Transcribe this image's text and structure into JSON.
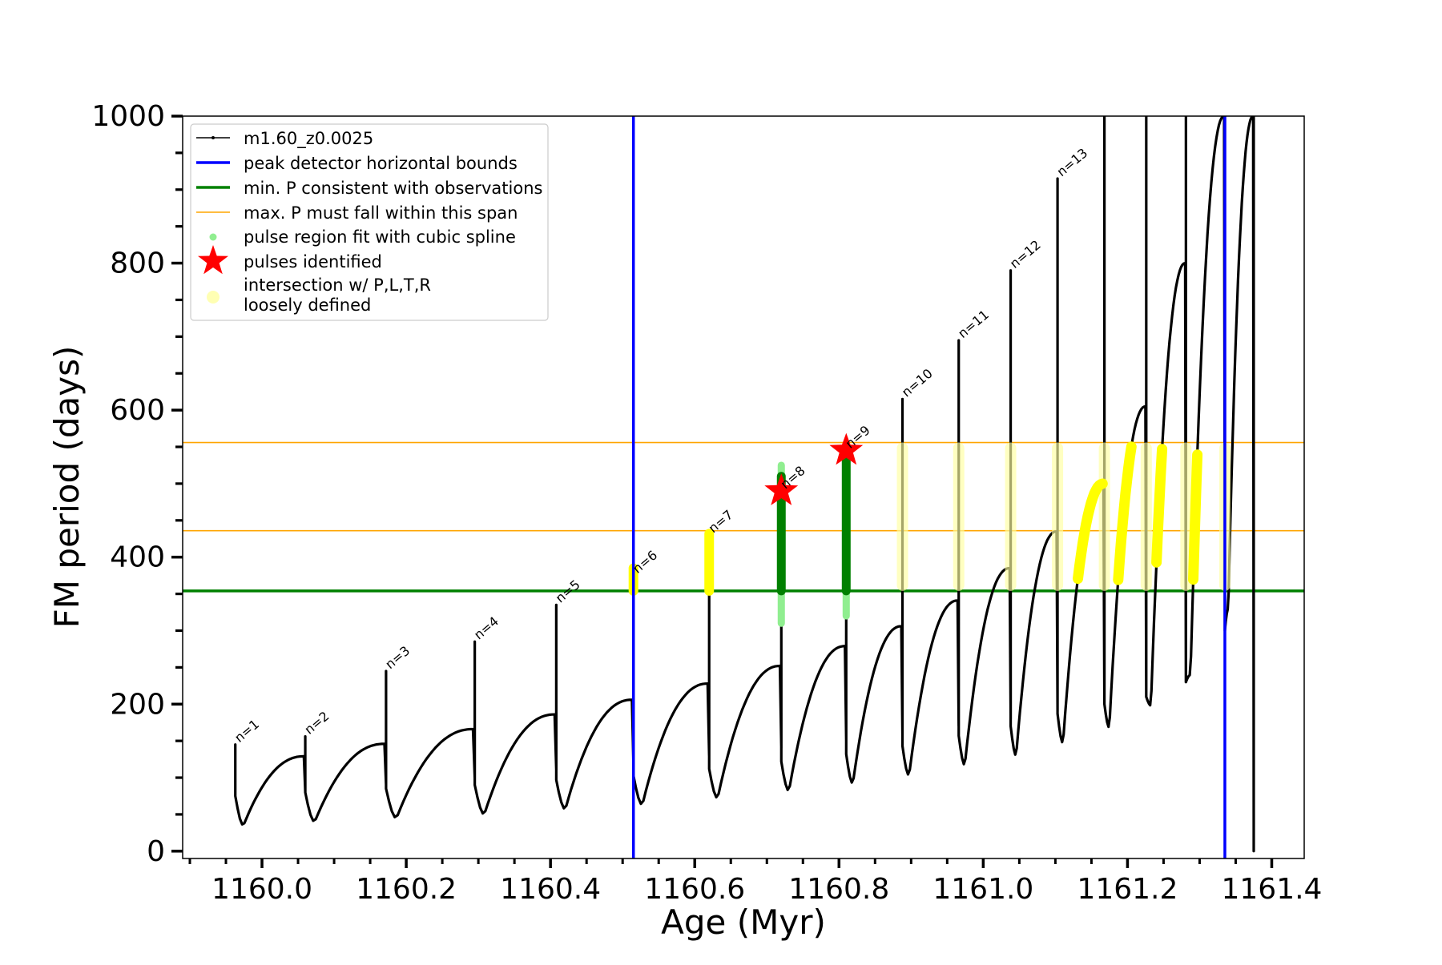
{
  "chart_data": {
    "type": "scatter",
    "xlabel": "Age (Myr)",
    "ylabel": "FM period (days)",
    "xlim": [
      1159.89,
      1161.445
    ],
    "ylim": [
      -10,
      1000
    ],
    "x_ticks": [
      "1160.0",
      "1160.2",
      "1160.4",
      "1160.6",
      "1160.8",
      "1161.0",
      "1161.2",
      "1161.4"
    ],
    "x_tick_values": [
      1160.0,
      1160.2,
      1160.4,
      1160.6,
      1160.8,
      1161.0,
      1161.2,
      1161.4
    ],
    "y_ticks": [
      "0",
      "200",
      "400",
      "600",
      "800",
      "1000"
    ],
    "y_tick_values": [
      0,
      200,
      400,
      600,
      800,
      1000
    ],
    "legend": {
      "placement": "upper-left",
      "entries": [
        "m1.60_z0.0025",
        "peak detector horizontal bounds",
        "min. P consistent with observations",
        "max. P must fall within this span",
        "pulse region fit with cubic spline",
        "pulses identified",
        "intersection w/ P,L,T,R",
        "loosely defined"
      ]
    },
    "colors": {
      "track": "#000000",
      "bounds": "#0000ff",
      "min_p": "#008000",
      "max_p": "#ffa500",
      "spline": "#90ee90",
      "spline_dark": "#008000",
      "pulse_star": "#ff0000",
      "intersection": "#ffff00",
      "loose": "#ffffa0"
    },
    "vertical_bounds": [
      1160.515,
      1161.335
    ],
    "min_p": 354,
    "max_p_span": [
      436,
      556
    ],
    "pulses": [
      {
        "label": "n=1",
        "x": 1159.963,
        "base": 84,
        "peak": 145,
        "dip": 35,
        "pre": 95
      },
      {
        "label": "n=2",
        "x": 1160.06,
        "base": 80,
        "peak": 156,
        "dip": 40,
        "pre": 129
      },
      {
        "label": "n=3",
        "x": 1160.172,
        "base": 90,
        "peak": 245,
        "dip": 45,
        "pre": 146
      },
      {
        "label": "n=4",
        "x": 1160.295,
        "base": 100,
        "peak": 285,
        "dip": 50,
        "pre": 166
      },
      {
        "label": "n=5",
        "x": 1160.408,
        "base": 110,
        "peak": 335,
        "dip": 57,
        "pre": 186
      },
      {
        "label": "n=6",
        "x": 1160.515,
        "base": 120,
        "peak": 375,
        "dip": 63,
        "pre": 206
      },
      {
        "label": "n=7",
        "x": 1160.62,
        "base": 130,
        "peak": 430,
        "dip": 72,
        "pre": 228
      },
      {
        "label": "n=8",
        "x": 1160.72,
        "base": 140,
        "peak": 490,
        "dip": 82,
        "pre": 252
      },
      {
        "label": "n=9",
        "x": 1160.81,
        "base": 150,
        "peak": 545,
        "dip": 92,
        "pre": 279
      },
      {
        "label": "n=10",
        "x": 1160.888,
        "base": 160,
        "peak": 615,
        "dip": 103,
        "pre": 306
      },
      {
        "label": "n=11",
        "x": 1160.966,
        "base": 170,
        "peak": 695,
        "dip": 117,
        "pre": 341
      },
      {
        "label": "n=12",
        "x": 1161.038,
        "base": 180,
        "peak": 790,
        "dip": 130,
        "pre": 385
      },
      {
        "label": "n=13",
        "x": 1161.103,
        "base": 190,
        "peak": 915,
        "dip": 147,
        "pre": 435
      },
      {
        "label": "",
        "x": 1161.168,
        "base": 200,
        "peak": 1000,
        "dip": 168,
        "pre": 500
      },
      {
        "label": "",
        "x": 1161.226,
        "base": 210,
        "peak": 1000,
        "dip": 198,
        "pre": 605
      },
      {
        "label": "",
        "x": 1161.281,
        "base": 230,
        "peak": 1000,
        "dip": 240,
        "pre": 800
      },
      {
        "label": "",
        "x": 1161.335,
        "base": 300,
        "peak": 1000,
        "dip": 330,
        "pre": 1000
      },
      {
        "label": "",
        "x": 1161.375,
        "base": 0,
        "peak": 1000,
        "dip": 0,
        "pre": 1000
      }
    ],
    "identified_pulses": [
      {
        "x": 1160.72,
        "y": 490
      },
      {
        "x": 1160.81,
        "y": 545
      }
    ],
    "spline_regions": [
      {
        "x": 1160.72,
        "y_range": [
          310,
          525
        ]
      },
      {
        "x": 1160.81,
        "y_range": [
          320,
          545
        ]
      }
    ]
  }
}
